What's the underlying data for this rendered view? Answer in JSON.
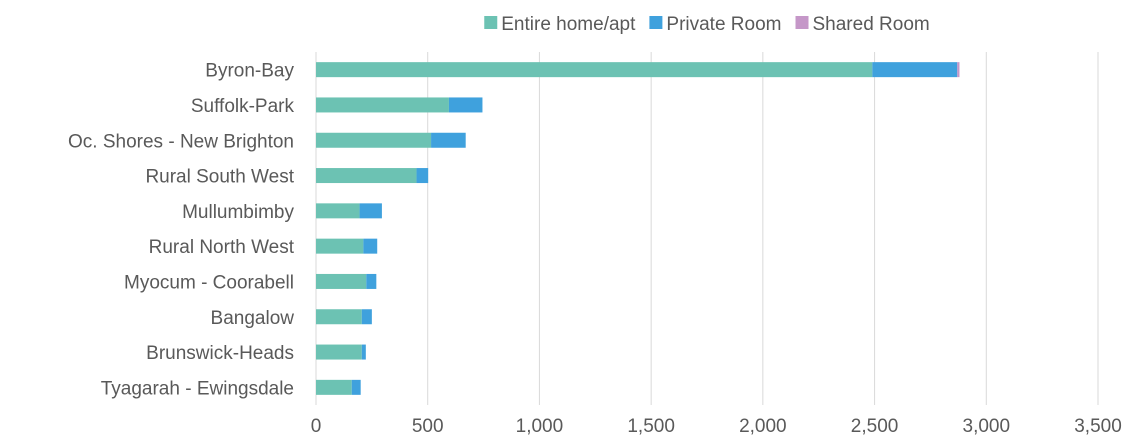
{
  "chart_data": {
    "type": "bar",
    "orientation": "horizontal",
    "stacked": true,
    "categories": [
      "Byron-Bay",
      "Suffolk-Park",
      "Oc. Shores - New Brighton",
      "Rural South West",
      "Mullumbimby",
      "Rural North West",
      "Myocum - Coorabell",
      "Bangalow",
      "Brunswick-Heads",
      "Tyagarah - Ewingsdale"
    ],
    "series": [
      {
        "name": "Entire home/apt",
        "color": "#6cc2b3",
        "values": [
          2490,
          595,
          515,
          450,
          195,
          212,
          225,
          205,
          205,
          160
        ]
      },
      {
        "name": "Private Room",
        "color": "#3fa1dd",
        "values": [
          380,
          150,
          155,
          52,
          100,
          62,
          45,
          45,
          18,
          40
        ]
      },
      {
        "name": "Shared Room",
        "color": "#c597c8",
        "values": [
          10,
          0,
          0,
          0,
          0,
          0,
          0,
          0,
          0,
          0
        ]
      }
    ],
    "xlim": [
      0,
      3500
    ],
    "xticks": [
      0,
      500,
      1000,
      1500,
      2000,
      2500,
      3000,
      3500
    ],
    "xtick_labels": [
      "0",
      "500",
      "1,000",
      "1,500",
      "2,000",
      "2,500",
      "3,000",
      "3,500"
    ],
    "grid": true,
    "legend_position": "top"
  }
}
